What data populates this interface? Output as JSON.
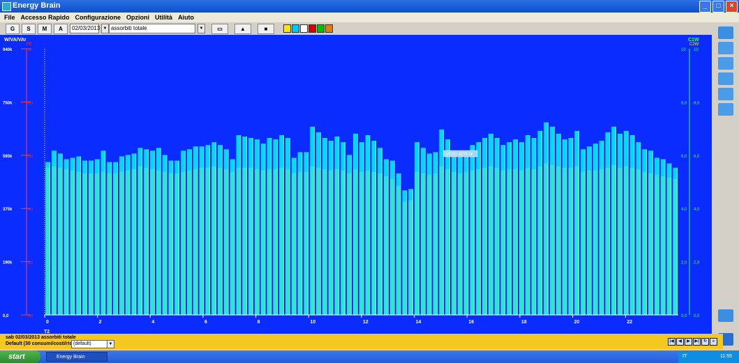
{
  "window": {
    "title": "Energy Brain"
  },
  "menu": [
    "File",
    "Accesso Rapido",
    "Configurazione",
    "Opzioni",
    "Utilità",
    "Aiuto"
  ],
  "toolbar": {
    "period_buttons": [
      "G",
      "S",
      "M",
      "A"
    ],
    "date_value": "02/03/2013",
    "meter_value": "assorbiti totale",
    "color_boxes": [
      "#ffe600",
      "#00c8f0",
      "#ffffff",
      "#d40000",
      "#00c000",
      "#e08000"
    ]
  },
  "chart_data": {
    "type": "bar",
    "left_axis_title": "W/VA/VAr",
    "left_axis_sub": "FE",
    "right_axis_title": "C1W",
    "right_axis_sub": "C2W",
    "left_ticks": [
      "940k",
      "750k",
      "565k",
      "375k",
      "190k",
      "0,0"
    ],
    "right_ticks": [
      "10",
      "8,0",
      "6,0",
      "4,0",
      "2,0",
      "0,0"
    ],
    "ylim": [
      0,
      940000
    ],
    "x_labels": [
      "0",
      "2",
      "4",
      "6",
      "8",
      "10",
      "12",
      "14",
      "16",
      "18",
      "20",
      "22"
    ],
    "x_sub_label": "T2",
    "tooltip": "15:00: 657k W",
    "series": [
      {
        "name": "",
        "color": "#00d9ff",
        "values": [
          540,
          580,
          570,
          550,
          555,
          560,
          545,
          545,
          550,
          580,
          540,
          540,
          560,
          565,
          570,
          590,
          585,
          580,
          590,
          565,
          545,
          545,
          580,
          585,
          595,
          595,
          600,
          610,
          600,
          585,
          550,
          635,
          630,
          625,
          620,
          605,
          625,
          620,
          635,
          625,
          555,
          575,
          575,
          665,
          645,
          625,
          615,
          630,
          610,
          565,
          640,
          610,
          635,
          615,
          590,
          550,
          545,
          500,
          440,
          445,
          610,
          590,
          570,
          575,
          655,
          620,
          565,
          560,
          565,
          600,
          610,
          625,
          640,
          625,
          600,
          610,
          620,
          610,
          635,
          625,
          650,
          680,
          665,
          640,
          620,
          625,
          650,
          585,
          595,
          605,
          615,
          645,
          665,
          640,
          650,
          635,
          610,
          585,
          580,
          555,
          550,
          535,
          520
        ]
      },
      {
        "name": "",
        "color": "#30e8c8",
        "values": [
          520,
          525,
          520,
          515,
          510,
          505,
          500,
          500,
          500,
          505,
          500,
          500,
          505,
          510,
          515,
          525,
          520,
          515,
          510,
          505,
          500,
          500,
          505,
          510,
          515,
          520,
          520,
          525,
          520,
          515,
          505,
          520,
          520,
          520,
          515,
          510,
          515,
          515,
          520,
          515,
          500,
          505,
          505,
          525,
          520,
          515,
          510,
          515,
          510,
          500,
          515,
          505,
          510,
          505,
          500,
          490,
          480,
          455,
          400,
          405,
          505,
          500,
          495,
          500,
          525,
          515,
          505,
          500,
          505,
          510,
          515,
          520,
          525,
          520,
          510,
          515,
          515,
          510,
          520,
          515,
          525,
          535,
          530,
          525,
          520,
          520,
          525,
          505,
          510,
          510,
          515,
          520,
          530,
          520,
          525,
          520,
          515,
          505,
          500,
          495,
          490,
          485,
          480
        ]
      }
    ]
  },
  "status": {
    "line1": "sab 02/03/2013 assorbiti totale",
    "line2_label": "Default (30 consumi/costi/risultà",
    "profile_value": "(default)"
  },
  "taskbar": {
    "start_label": "start",
    "task_label": "Energy Brain",
    "tray_lang": "IT",
    "clock": "11:55"
  }
}
